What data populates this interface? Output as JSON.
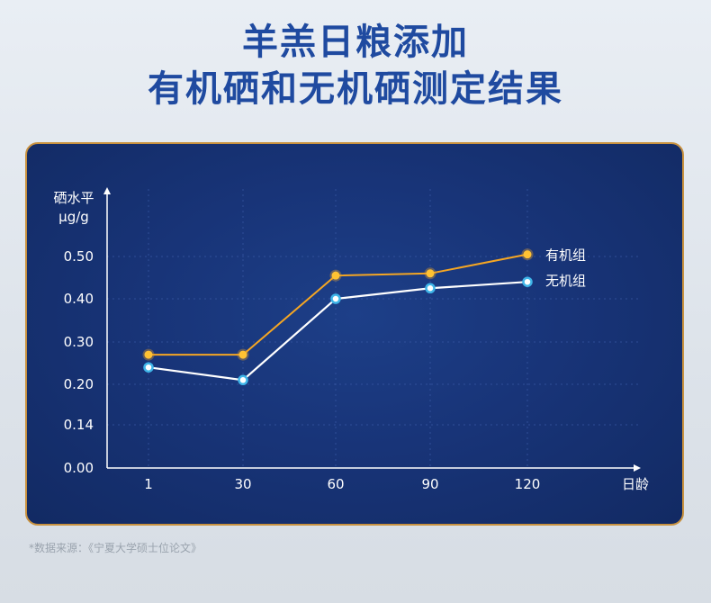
{
  "title_line1": "羊羔日粮添加",
  "title_line2": "有机硒和无机硒测定结果",
  "source_note": "*数据来源：《宁夏大学硕士位论文》",
  "colors": {
    "organic": "#f5a623",
    "inorganic": "#ffffff",
    "marker_ring": "#3fb5e8",
    "panel_border": "#c9923f",
    "title": "#1f4aa0"
  },
  "chart_data": {
    "type": "line",
    "ylabel": [
      "硒水平",
      "μg/g"
    ],
    "xlabel": "日龄",
    "categories": [
      "1",
      "30",
      "60",
      "90",
      "120"
    ],
    "y_ticks": [
      "0.00",
      "0.14",
      "0.20",
      "0.30",
      "0.40",
      "0.50"
    ],
    "grid": true,
    "legend": "right-end-labels",
    "series": [
      {
        "name": "有机组",
        "values": [
          0.27,
          0.27,
          0.455,
          0.46,
          0.505
        ]
      },
      {
        "name": "无机组",
        "values": [
          0.24,
          0.21,
          0.4,
          0.425,
          0.44
        ]
      }
    ]
  }
}
